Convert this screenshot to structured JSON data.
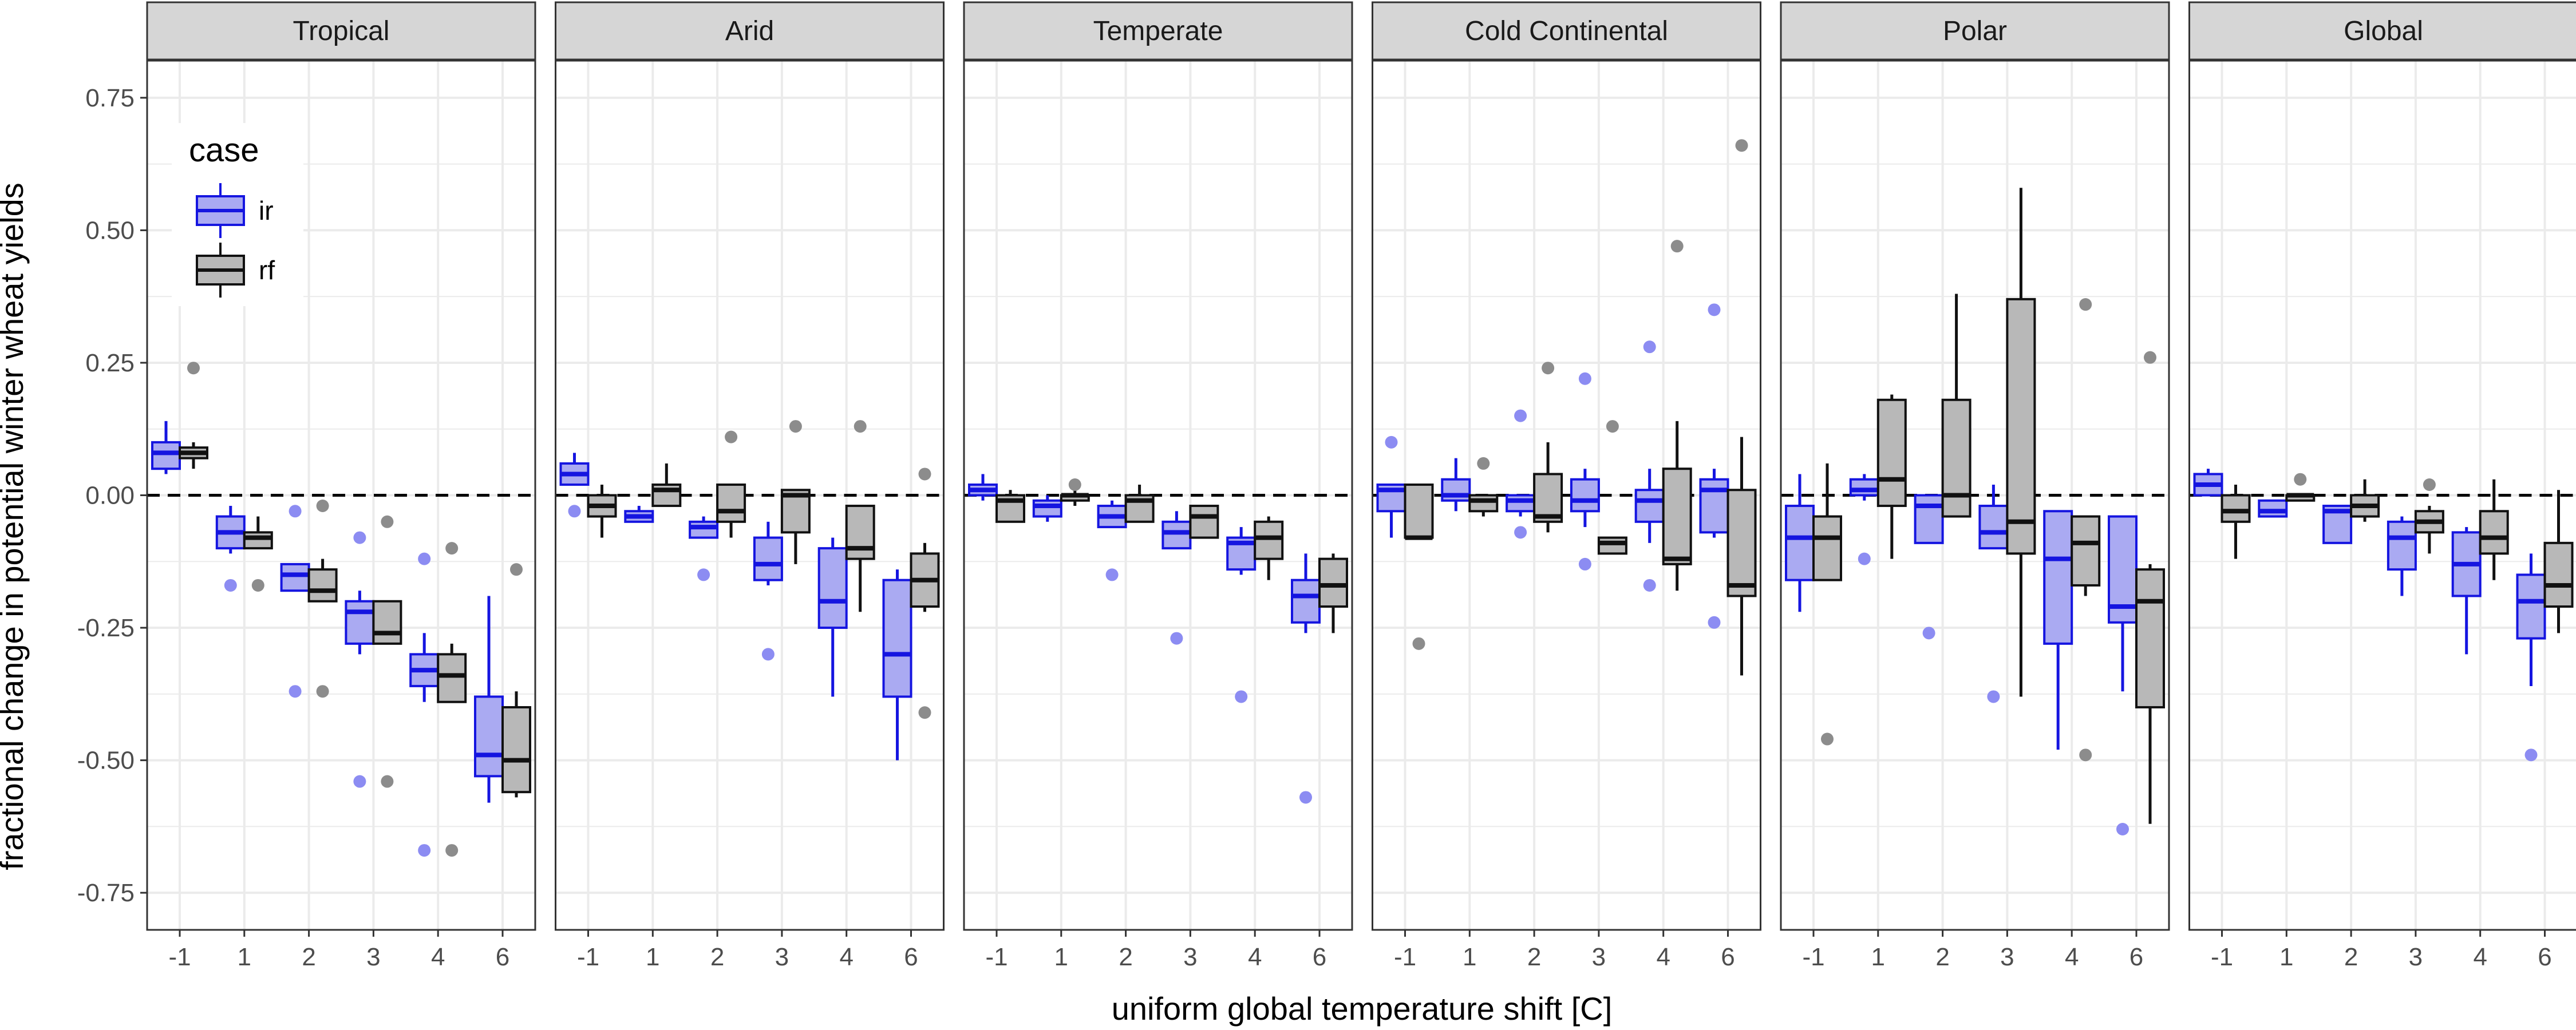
{
  "chart_data": {
    "type": "boxplot",
    "xlabel": "uniform global temperature shift [C]",
    "ylabel": "fractional change in potential winter wheat yields",
    "ylim": [
      -0.82,
      0.82
    ],
    "yticks": [
      -0.75,
      -0.5,
      -0.25,
      0.0,
      0.25,
      0.5,
      0.75
    ],
    "ytick_labels": [
      "-0.75",
      "-0.50",
      "-0.25",
      "0.00",
      "0.25",
      "0.50",
      "0.75"
    ],
    "categories": [
      "-1",
      "1",
      "2",
      "3",
      "4",
      "6"
    ],
    "reference_line": 0,
    "legend": {
      "title": "case",
      "position": "top-left",
      "entries": [
        {
          "label": "ir",
          "fill": "#aaaaf2",
          "stroke": "#1515e0"
        },
        {
          "label": "rf",
          "fill": "#b8b8b8",
          "stroke": "#111111"
        }
      ]
    },
    "colors": {
      "ir_fill": "#aaaaf2",
      "ir_stroke": "#1515e0",
      "ir_outlier": "#8c8cf2",
      "rf_fill": "#b8b8b8",
      "rf_stroke": "#111111",
      "rf_outlier": "#8c8c8c",
      "strip_bg": "#d6d6d6",
      "grid": "#ebebeb"
    },
    "panels": [
      {
        "name": "Tropical",
        "series": {
          "ir": [
            {
              "lw": 0.04,
              "q1": 0.05,
              "med": 0.08,
              "q3": 0.1,
              "uw": 0.14,
              "out": []
            },
            {
              "lw": -0.11,
              "q1": -0.1,
              "med": -0.07,
              "q3": -0.04,
              "uw": -0.02,
              "out": [
                -0.17
              ]
            },
            {
              "lw": -0.18,
              "q1": -0.18,
              "med": -0.15,
              "q3": -0.13,
              "uw": -0.13,
              "out": [
                -0.03,
                -0.37
              ]
            },
            {
              "lw": -0.3,
              "q1": -0.28,
              "med": -0.22,
              "q3": -0.2,
              "uw": -0.18,
              "out": [
                -0.08,
                -0.54
              ]
            },
            {
              "lw": -0.39,
              "q1": -0.36,
              "med": -0.33,
              "q3": -0.3,
              "uw": -0.26,
              "out": [
                -0.12,
                -0.67
              ]
            },
            {
              "lw": -0.58,
              "q1": -0.53,
              "med": -0.49,
              "q3": -0.38,
              "uw": -0.19,
              "out": []
            }
          ],
          "rf": [
            {
              "lw": 0.05,
              "q1": 0.07,
              "med": 0.08,
              "q3": 0.09,
              "uw": 0.1,
              "out": [
                0.24
              ]
            },
            {
              "lw": -0.1,
              "q1": -0.1,
              "med": -0.08,
              "q3": -0.07,
              "uw": -0.04,
              "out": [
                -0.17
              ]
            },
            {
              "lw": -0.2,
              "q1": -0.2,
              "med": -0.18,
              "q3": -0.14,
              "uw": -0.12,
              "out": [
                -0.02,
                -0.37
              ]
            },
            {
              "lw": -0.28,
              "q1": -0.28,
              "med": -0.26,
              "q3": -0.2,
              "uw": -0.2,
              "out": [
                -0.05,
                -0.54
              ]
            },
            {
              "lw": -0.39,
              "q1": -0.39,
              "med": -0.34,
              "q3": -0.3,
              "uw": -0.28,
              "out": [
                -0.1,
                -0.67
              ]
            },
            {
              "lw": -0.57,
              "q1": -0.56,
              "med": -0.5,
              "q3": -0.4,
              "uw": -0.37,
              "out": [
                -0.14
              ]
            }
          ]
        }
      },
      {
        "name": "Arid",
        "series": {
          "ir": [
            {
              "lw": 0.02,
              "q1": 0.02,
              "med": 0.04,
              "q3": 0.06,
              "uw": 0.08,
              "out": [
                -0.03
              ]
            },
            {
              "lw": -0.05,
              "q1": -0.05,
              "med": -0.04,
              "q3": -0.03,
              "uw": -0.02,
              "out": []
            },
            {
              "lw": -0.08,
              "q1": -0.08,
              "med": -0.06,
              "q3": -0.05,
              "uw": -0.04,
              "out": [
                -0.15
              ]
            },
            {
              "lw": -0.17,
              "q1": -0.16,
              "med": -0.13,
              "q3": -0.08,
              "uw": -0.05,
              "out": [
                -0.3
              ]
            },
            {
              "lw": -0.38,
              "q1": -0.25,
              "med": -0.2,
              "q3": -0.1,
              "uw": -0.08,
              "out": []
            },
            {
              "lw": -0.5,
              "q1": -0.38,
              "med": -0.3,
              "q3": -0.16,
              "uw": -0.14,
              "out": []
            }
          ],
          "rf": [
            {
              "lw": -0.08,
              "q1": -0.04,
              "med": -0.02,
              "q3": 0.0,
              "uw": 0.02,
              "out": []
            },
            {
              "lw": -0.01,
              "q1": -0.02,
              "med": 0.01,
              "q3": 0.02,
              "uw": 0.06,
              "out": []
            },
            {
              "lw": -0.08,
              "q1": -0.05,
              "med": -0.03,
              "q3": 0.02,
              "uw": 0.02,
              "out": [
                0.11
              ]
            },
            {
              "lw": -0.13,
              "q1": -0.07,
              "med": 0.0,
              "q3": 0.01,
              "uw": 0.01,
              "out": [
                0.13
              ]
            },
            {
              "lw": -0.22,
              "q1": -0.12,
              "med": -0.1,
              "q3": -0.02,
              "uw": -0.02,
              "out": [
                0.13
              ]
            },
            {
              "lw": -0.22,
              "q1": -0.21,
              "med": -0.16,
              "q3": -0.11,
              "uw": -0.09,
              "out": [
                0.04,
                -0.41
              ]
            }
          ]
        }
      },
      {
        "name": "Temperate",
        "series": {
          "ir": [
            {
              "lw": -0.01,
              "q1": 0.0,
              "med": 0.01,
              "q3": 0.02,
              "uw": 0.04,
              "out": []
            },
            {
              "lw": -0.05,
              "q1": -0.04,
              "med": -0.02,
              "q3": -0.01,
              "uw": 0.0,
              "out": []
            },
            {
              "lw": -0.06,
              "q1": -0.06,
              "med": -0.04,
              "q3": -0.02,
              "uw": -0.01,
              "out": [
                -0.15
              ]
            },
            {
              "lw": -0.1,
              "q1": -0.1,
              "med": -0.07,
              "q3": -0.05,
              "uw": -0.03,
              "out": [
                -0.27
              ]
            },
            {
              "lw": -0.15,
              "q1": -0.14,
              "med": -0.09,
              "q3": -0.08,
              "uw": -0.06,
              "out": [
                -0.38
              ]
            },
            {
              "lw": -0.26,
              "q1": -0.24,
              "med": -0.19,
              "q3": -0.16,
              "uw": -0.11,
              "out": [
                -0.57
              ]
            }
          ],
          "rf": [
            {
              "lw": -0.05,
              "q1": -0.05,
              "med": -0.01,
              "q3": 0.0,
              "uw": 0.01,
              "out": []
            },
            {
              "lw": -0.02,
              "q1": -0.01,
              "med": 0.0,
              "q3": 0.0,
              "uw": 0.01,
              "out": [
                0.02
              ]
            },
            {
              "lw": -0.05,
              "q1": -0.05,
              "med": -0.01,
              "q3": 0.0,
              "uw": 0.02,
              "out": []
            },
            {
              "lw": -0.08,
              "q1": -0.08,
              "med": -0.04,
              "q3": -0.02,
              "uw": -0.02,
              "out": []
            },
            {
              "lw": -0.16,
              "q1": -0.12,
              "med": -0.08,
              "q3": -0.05,
              "uw": -0.04,
              "out": []
            },
            {
              "lw": -0.26,
              "q1": -0.21,
              "med": -0.17,
              "q3": -0.12,
              "uw": -0.11,
              "out": []
            }
          ]
        }
      },
      {
        "name": "Cold Continental",
        "series": {
          "ir": [
            {
              "lw": -0.08,
              "q1": -0.03,
              "med": 0.01,
              "q3": 0.02,
              "uw": 0.02,
              "out": [
                0.1
              ]
            },
            {
              "lw": -0.03,
              "q1": -0.01,
              "med": 0.0,
              "q3": 0.03,
              "uw": 0.07,
              "out": []
            },
            {
              "lw": -0.04,
              "q1": -0.03,
              "med": -0.01,
              "q3": 0.0,
              "uw": 0.0,
              "out": [
                0.15,
                -0.07
              ]
            },
            {
              "lw": -0.06,
              "q1": -0.03,
              "med": -0.01,
              "q3": 0.03,
              "uw": 0.05,
              "out": [
                0.22,
                -0.13
              ]
            },
            {
              "lw": -0.09,
              "q1": -0.05,
              "med": -0.01,
              "q3": 0.01,
              "uw": 0.05,
              "out": [
                0.28,
                -0.17
              ]
            },
            {
              "lw": -0.08,
              "q1": -0.07,
              "med": 0.01,
              "q3": 0.03,
              "uw": 0.05,
              "out": [
                0.35,
                -0.24
              ]
            }
          ],
          "rf": [
            {
              "lw": -0.07,
              "q1": -0.08,
              "med": -0.08,
              "q3": 0.02,
              "uw": 0.02,
              "out": [
                -0.28
              ]
            },
            {
              "lw": -0.04,
              "q1": -0.03,
              "med": -0.01,
              "q3": 0.0,
              "uw": 0.0,
              "out": [
                0.06
              ]
            },
            {
              "lw": -0.07,
              "q1": -0.05,
              "med": -0.04,
              "q3": 0.04,
              "uw": 0.1,
              "out": [
                0.24
              ]
            },
            {
              "lw": -0.11,
              "q1": -0.11,
              "med": -0.09,
              "q3": -0.08,
              "uw": -0.08,
              "out": [
                0.13
              ]
            },
            {
              "lw": -0.18,
              "q1": -0.13,
              "med": -0.12,
              "q3": 0.05,
              "uw": 0.14,
              "out": [
                0.47
              ]
            },
            {
              "lw": -0.34,
              "q1": -0.19,
              "med": -0.17,
              "q3": 0.01,
              "uw": 0.11,
              "out": [
                0.66
              ]
            }
          ]
        }
      },
      {
        "name": "Polar",
        "series": {
          "ir": [
            {
              "lw": -0.22,
              "q1": -0.16,
              "med": -0.08,
              "q3": -0.02,
              "uw": 0.04,
              "out": []
            },
            {
              "lw": -0.01,
              "q1": 0.0,
              "med": 0.01,
              "q3": 0.03,
              "uw": 0.04,
              "out": [
                -0.12
              ]
            },
            {
              "lw": -0.09,
              "q1": -0.09,
              "med": -0.02,
              "q3": 0.0,
              "uw": 0.0,
              "out": [
                -0.26
              ]
            },
            {
              "lw": -0.1,
              "q1": -0.1,
              "med": -0.07,
              "q3": -0.02,
              "uw": 0.02,
              "out": [
                -0.38
              ]
            },
            {
              "lw": -0.48,
              "q1": -0.28,
              "med": -0.12,
              "q3": -0.03,
              "uw": -0.03,
              "out": []
            },
            {
              "lw": -0.37,
              "q1": -0.24,
              "med": -0.21,
              "q3": -0.04,
              "uw": -0.04,
              "out": [
                -0.63
              ]
            }
          ],
          "rf": [
            {
              "lw": -0.16,
              "q1": -0.16,
              "med": -0.08,
              "q3": -0.04,
              "uw": 0.06,
              "out": [
                -0.46
              ]
            },
            {
              "lw": -0.12,
              "q1": -0.02,
              "med": 0.03,
              "q3": 0.18,
              "uw": 0.19,
              "out": []
            },
            {
              "lw": -0.04,
              "q1": -0.04,
              "med": 0.0,
              "q3": 0.18,
              "uw": 0.38,
              "out": []
            },
            {
              "lw": -0.38,
              "q1": -0.11,
              "med": -0.05,
              "q3": 0.37,
              "uw": 0.58,
              "out": []
            },
            {
              "lw": -0.19,
              "q1": -0.17,
              "med": -0.09,
              "q3": -0.04,
              "uw": -0.04,
              "out": [
                0.36,
                -0.49
              ]
            },
            {
              "lw": -0.62,
              "q1": -0.4,
              "med": -0.2,
              "q3": -0.14,
              "uw": -0.13,
              "out": [
                0.26
              ]
            }
          ]
        }
      },
      {
        "name": "Global",
        "series": {
          "ir": [
            {
              "lw": 0.0,
              "q1": 0.0,
              "med": 0.02,
              "q3": 0.04,
              "uw": 0.05,
              "out": []
            },
            {
              "lw": -0.04,
              "q1": -0.04,
              "med": -0.03,
              "q3": -0.01,
              "uw": -0.01,
              "out": []
            },
            {
              "lw": -0.09,
              "q1": -0.09,
              "med": -0.03,
              "q3": -0.02,
              "uw": -0.02,
              "out": []
            },
            {
              "lw": -0.19,
              "q1": -0.14,
              "med": -0.08,
              "q3": -0.05,
              "uw": -0.04,
              "out": []
            },
            {
              "lw": -0.3,
              "q1": -0.19,
              "med": -0.13,
              "q3": -0.07,
              "uw": -0.06,
              "out": []
            },
            {
              "lw": -0.36,
              "q1": -0.27,
              "med": -0.2,
              "q3": -0.15,
              "uw": -0.11,
              "out": [
                -0.49
              ]
            }
          ],
          "rf": [
            {
              "lw": -0.12,
              "q1": -0.05,
              "med": -0.03,
              "q3": 0.0,
              "uw": 0.02,
              "out": []
            },
            {
              "lw": -0.01,
              "q1": -0.01,
              "med": 0.0,
              "q3": 0.0,
              "uw": 0.0,
              "out": [
                0.03
              ]
            },
            {
              "lw": -0.05,
              "q1": -0.04,
              "med": -0.02,
              "q3": 0.0,
              "uw": 0.03,
              "out": []
            },
            {
              "lw": -0.11,
              "q1": -0.07,
              "med": -0.05,
              "q3": -0.03,
              "uw": -0.02,
              "out": [
                0.02
              ]
            },
            {
              "lw": -0.16,
              "q1": -0.11,
              "med": -0.08,
              "q3": -0.03,
              "uw": 0.03,
              "out": []
            },
            {
              "lw": -0.26,
              "q1": -0.21,
              "med": -0.17,
              "q3": -0.09,
              "uw": 0.01,
              "out": []
            }
          ]
        }
      }
    ]
  }
}
